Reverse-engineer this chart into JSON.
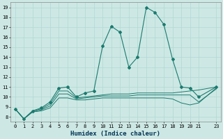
{
  "title": "",
  "xlabel": "Humidex (Indice chaleur)",
  "ylabel": "",
  "bg_color": "#cde8e4",
  "line_color": "#1a7a6e",
  "grid_color": "#b0d8d4",
  "xlim": [
    -0.5,
    23.5
  ],
  "ylim": [
    7.5,
    19.5
  ],
  "xticks": [
    0,
    1,
    2,
    3,
    4,
    5,
    6,
    7,
    8,
    9,
    10,
    11,
    12,
    13,
    14,
    15,
    16,
    17,
    18,
    19,
    20,
    21,
    23
  ],
  "yticks": [
    8,
    9,
    10,
    11,
    12,
    13,
    14,
    15,
    16,
    17,
    18,
    19
  ],
  "lines": [
    {
      "x": [
        0,
        1,
        2,
        3,
        4,
        5,
        6,
        7,
        8,
        9,
        10,
        11,
        12,
        13,
        14,
        15,
        16,
        17,
        18,
        19,
        20,
        21,
        23
      ],
      "y": [
        8.8,
        7.8,
        8.6,
        8.9,
        9.5,
        10.9,
        11.0,
        10.0,
        10.4,
        10.6,
        15.1,
        17.1,
        16.5,
        13.0,
        14.0,
        19.0,
        18.5,
        17.3,
        13.8,
        11.0,
        10.9,
        10.0,
        11.0
      ],
      "has_markers": true
    },
    {
      "x": [
        0,
        1,
        2,
        3,
        4,
        5,
        6,
        7,
        8,
        9,
        10,
        11,
        12,
        13,
        14,
        15,
        16,
        17,
        18,
        19,
        20,
        21,
        23
      ],
      "y": [
        8.8,
        7.8,
        8.6,
        8.8,
        9.3,
        10.6,
        10.6,
        9.9,
        10.0,
        10.1,
        10.2,
        10.3,
        10.3,
        10.3,
        10.4,
        10.4,
        10.4,
        10.4,
        10.4,
        10.5,
        10.6,
        10.7,
        11.0
      ],
      "has_markers": false
    },
    {
      "x": [
        0,
        1,
        2,
        3,
        4,
        5,
        6,
        7,
        8,
        9,
        10,
        11,
        12,
        13,
        14,
        15,
        16,
        17,
        18,
        19,
        20,
        21,
        23
      ],
      "y": [
        8.8,
        7.8,
        8.5,
        8.7,
        9.1,
        10.3,
        10.3,
        9.8,
        9.9,
        10.0,
        10.1,
        10.1,
        10.1,
        10.1,
        10.2,
        10.2,
        10.2,
        10.2,
        10.2,
        10.2,
        10.2,
        9.5,
        10.8
      ],
      "has_markers": false
    },
    {
      "x": [
        0,
        1,
        2,
        3,
        4,
        5,
        6,
        7,
        8,
        9,
        10,
        11,
        12,
        13,
        14,
        15,
        16,
        17,
        18,
        19,
        20,
        21,
        23
      ],
      "y": [
        8.8,
        7.8,
        8.5,
        8.6,
        8.9,
        9.9,
        9.9,
        9.7,
        9.7,
        9.8,
        9.9,
        9.9,
        9.9,
        9.9,
        9.9,
        9.9,
        9.9,
        9.9,
        9.8,
        9.4,
        9.2,
        9.4,
        10.9
      ],
      "has_markers": false
    }
  ]
}
